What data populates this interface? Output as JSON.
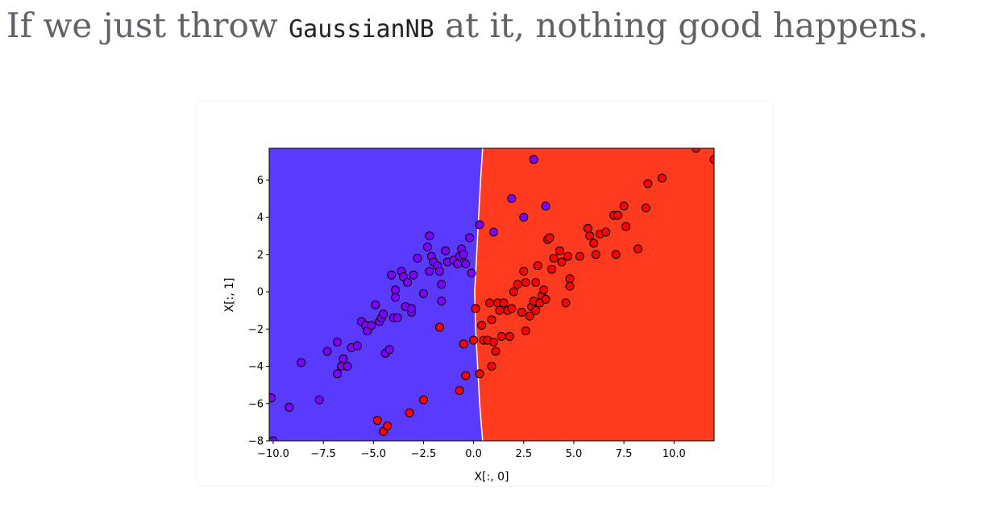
{
  "heading": {
    "before": "If we just throw ",
    "code": "GaussianNB",
    "after": " at it, nothing good happens."
  },
  "colors": {
    "region_class0": "#5b3aff",
    "region_class1": "#ff3a1e",
    "point_class0": "#8000ff",
    "point_class1": "#ff0000",
    "point_edge": "#000000",
    "boundary": "#ffffff"
  },
  "chart_data": {
    "type": "scatter",
    "xlabel": "X[:, 0]",
    "ylabel": "X[:, 1]",
    "xlim": [
      -10.2,
      12
    ],
    "ylim": [
      -8,
      7.7
    ],
    "xticks": [
      -10.0,
      -7.5,
      -5.0,
      -2.5,
      0.0,
      2.5,
      5.0,
      7.5,
      10.0
    ],
    "xtick_labels": [
      "−10.0",
      "−7.5",
      "−5.0",
      "−2.5",
      "0.0",
      "2.5",
      "5.0",
      "7.5",
      "10.0"
    ],
    "yticks": [
      -8,
      -6,
      -4,
      -2,
      0,
      2,
      4,
      6
    ],
    "ytick_labels": [
      "−8",
      "−6",
      "−4",
      "−2",
      "0",
      "2",
      "4",
      "6"
    ],
    "grid": false,
    "decision_boundary": [
      [
        0.45,
        7.7
      ],
      [
        0.35,
        6.0
      ],
      [
        0.25,
        4.0
      ],
      [
        0.15,
        2.0
      ],
      [
        0.05,
        0.0
      ],
      [
        0.1,
        -2.0
      ],
      [
        0.2,
        -4.0
      ],
      [
        0.3,
        -6.0
      ],
      [
        0.45,
        -8.0
      ]
    ],
    "series": [
      {
        "class": 0,
        "points": [
          [
            -10.1,
            -5.7
          ],
          [
            -10.0,
            -8.0
          ],
          [
            -9.2,
            -6.2
          ],
          [
            -8.6,
            -3.8
          ],
          [
            -7.7,
            -5.8
          ],
          [
            -7.3,
            -3.2
          ],
          [
            -6.8,
            -2.7
          ],
          [
            -6.8,
            -4.4
          ],
          [
            -6.6,
            -4.0
          ],
          [
            -6.5,
            -3.6
          ],
          [
            -6.3,
            -4.0
          ],
          [
            -6.1,
            -3.0
          ],
          [
            -5.8,
            -2.9
          ],
          [
            -5.6,
            -1.6
          ],
          [
            -5.4,
            -1.8
          ],
          [
            -5.3,
            -2.1
          ],
          [
            -5.1,
            -1.8
          ],
          [
            -4.9,
            -0.7
          ],
          [
            -4.7,
            -1.6
          ],
          [
            -4.6,
            -1.4
          ],
          [
            -4.5,
            -1.2
          ],
          [
            -4.4,
            -3.3
          ],
          [
            -4.2,
            -3.1
          ],
          [
            -4.1,
            0.9
          ],
          [
            -4.0,
            -1.4
          ],
          [
            -3.9,
            0.1
          ],
          [
            -3.9,
            -0.3
          ],
          [
            -3.8,
            -1.4
          ],
          [
            -3.6,
            1.1
          ],
          [
            -3.5,
            0.8
          ],
          [
            -3.4,
            -0.8
          ],
          [
            -3.3,
            0.5
          ],
          [
            -3.1,
            -1.1
          ],
          [
            -3.1,
            -0.9
          ],
          [
            -3.0,
            0.9
          ],
          [
            -2.8,
            1.8
          ],
          [
            -2.5,
            -0.1
          ],
          [
            -2.3,
            2.4
          ],
          [
            -2.2,
            1.1
          ],
          [
            -2.2,
            3.0
          ],
          [
            -2.1,
            1.9
          ],
          [
            -2.0,
            1.6
          ],
          [
            -1.8,
            1.4
          ],
          [
            -1.7,
            1.1
          ],
          [
            -1.6,
            0.4
          ],
          [
            -1.6,
            -0.5
          ],
          [
            -1.4,
            2.2
          ],
          [
            -1.3,
            1.6
          ],
          [
            -1.0,
            1.7
          ],
          [
            -0.8,
            1.5
          ],
          [
            -0.7,
            1.9
          ],
          [
            -0.6,
            2.3
          ],
          [
            -0.5,
            2.0
          ],
          [
            -0.4,
            1.5
          ],
          [
            -0.2,
            2.9
          ],
          [
            -0.1,
            1.0
          ],
          [
            0.3,
            3.6
          ],
          [
            1.0,
            3.2
          ],
          [
            1.9,
            5.0
          ],
          [
            2.5,
            4.0
          ],
          [
            3.0,
            7.1
          ],
          [
            3.6,
            4.6
          ]
        ]
      },
      {
        "class": 1,
        "points": [
          [
            -4.8,
            -6.9
          ],
          [
            -4.5,
            -7.5
          ],
          [
            -4.3,
            -7.2
          ],
          [
            -3.2,
            -6.5
          ],
          [
            -2.5,
            -5.8
          ],
          [
            -1.7,
            -1.9
          ],
          [
            -0.7,
            -5.3
          ],
          [
            -0.5,
            -2.8
          ],
          [
            -0.4,
            -4.5
          ],
          [
            0.0,
            -2.6
          ],
          [
            0.1,
            -0.9
          ],
          [
            0.3,
            -4.4
          ],
          [
            0.4,
            -1.8
          ],
          [
            0.5,
            -2.6
          ],
          [
            0.7,
            -2.6
          ],
          [
            0.8,
            -0.6
          ],
          [
            0.9,
            -1.5
          ],
          [
            0.9,
            -4.0
          ],
          [
            1.0,
            -2.7
          ],
          [
            1.1,
            -3.2
          ],
          [
            1.2,
            -0.6
          ],
          [
            1.3,
            -1.0
          ],
          [
            1.4,
            -2.4
          ],
          [
            1.5,
            -0.6
          ],
          [
            1.7,
            -1.0
          ],
          [
            1.8,
            -2.4
          ],
          [
            1.9,
            -0.9
          ],
          [
            2.0,
            0.0
          ],
          [
            2.2,
            0.4
          ],
          [
            2.4,
            -1.1
          ],
          [
            2.5,
            1.1
          ],
          [
            2.6,
            -2.1
          ],
          [
            2.6,
            0.5
          ],
          [
            2.8,
            -1.3
          ],
          [
            2.9,
            -0.8
          ],
          [
            3.0,
            -0.5
          ],
          [
            3.1,
            -1.0
          ],
          [
            3.1,
            0.5
          ],
          [
            3.2,
            1.4
          ],
          [
            3.3,
            -0.6
          ],
          [
            3.4,
            -0.2
          ],
          [
            3.5,
            0.1
          ],
          [
            3.6,
            -0.4
          ],
          [
            3.7,
            2.8
          ],
          [
            3.8,
            2.9
          ],
          [
            3.9,
            1.2
          ],
          [
            4.0,
            1.8
          ],
          [
            4.3,
            2.2
          ],
          [
            4.4,
            1.6
          ],
          [
            4.6,
            -0.6
          ],
          [
            4.7,
            1.9
          ],
          [
            4.8,
            0.7
          ],
          [
            4.8,
            0.3
          ],
          [
            5.3,
            1.9
          ],
          [
            5.7,
            3.4
          ],
          [
            5.8,
            3.0
          ],
          [
            6.0,
            2.6
          ],
          [
            6.1,
            2.0
          ],
          [
            6.3,
            3.1
          ],
          [
            6.6,
            3.2
          ],
          [
            7.0,
            4.1
          ],
          [
            7.1,
            2.0
          ],
          [
            7.2,
            4.1
          ],
          [
            7.5,
            4.6
          ],
          [
            7.6,
            3.5
          ],
          [
            8.2,
            2.3
          ],
          [
            8.6,
            4.5
          ],
          [
            8.7,
            5.8
          ],
          [
            9.4,
            6.1
          ],
          [
            11.1,
            7.7
          ],
          [
            12.0,
            7.1
          ]
        ]
      }
    ]
  }
}
